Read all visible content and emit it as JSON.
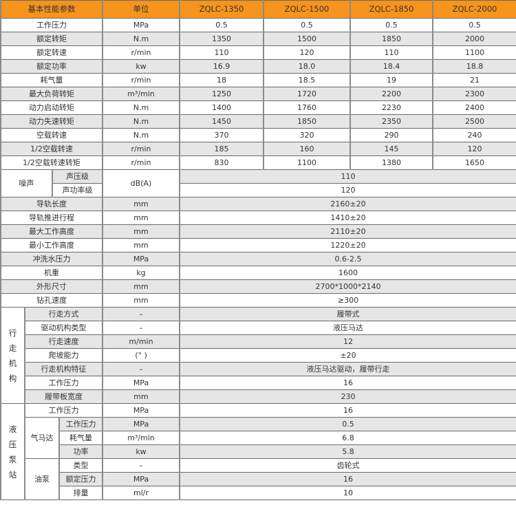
{
  "header": {
    "param": "基本性能参数",
    "unit": "单位",
    "models": [
      "ZQLC-1350",
      "ZQLC-1500",
      "ZQLC-1850",
      "ZQLC-2000"
    ]
  },
  "basic_rows": [
    {
      "label": "工作压力",
      "unit": "MPa",
      "values": [
        "0.5",
        "0.5",
        "0.5",
        "0.5"
      ]
    },
    {
      "label": "额定转矩",
      "unit": "N.m",
      "values": [
        "1350",
        "1500",
        "1850",
        "2000"
      ]
    },
    {
      "label": "额定转速",
      "unit": "r/min",
      "values": [
        "110",
        "120",
        "110",
        "1100"
      ]
    },
    {
      "label": "额定功率",
      "unit": "kw",
      "values": [
        "16.9",
        "18.0",
        "18.4",
        "18.8"
      ]
    },
    {
      "label": "耗气量",
      "unit": "r/min",
      "values": [
        "18",
        "18.5",
        "19",
        "21"
      ]
    },
    {
      "label": "最大负荷转矩",
      "unit": "m³/min",
      "values": [
        "1250",
        "1720",
        "2200",
        "2300"
      ]
    },
    {
      "label": "动力启动转矩",
      "unit": "N.m",
      "values": [
        "1400",
        "1760",
        "2230",
        "2400"
      ]
    },
    {
      "label": "动力失速转矩",
      "unit": "N.m",
      "values": [
        "1450",
        "1850",
        "2350",
        "2500"
      ]
    },
    {
      "label": "空载转速",
      "unit": "N.m",
      "values": [
        "370",
        "320",
        "290",
        "240"
      ]
    },
    {
      "label": "1/2空载转速",
      "unit": "r/min",
      "values": [
        "185",
        "160",
        "145",
        "120"
      ]
    },
    {
      "label": "1/2空载转速转矩",
      "unit": "r/min",
      "values": [
        "830",
        "1100",
        "1380",
        "1650"
      ]
    }
  ],
  "noise": {
    "label": "噪声",
    "unit": "dB(A)",
    "rows": [
      {
        "label": "声压级",
        "value": "110"
      },
      {
        "label": "声功率级",
        "value": "120"
      }
    ]
  },
  "common_rows": [
    {
      "label": "导轨长度",
      "unit": "mm",
      "value": "2160±20"
    },
    {
      "label": "导轨推进行程",
      "unit": "mm",
      "value": "1410±20"
    },
    {
      "label": "最大工作高度",
      "unit": "mm",
      "value": "2110±20"
    },
    {
      "label": "最小工作高度",
      "unit": "mm",
      "value": "1220±20"
    },
    {
      "label": "冲洗水压力",
      "unit": "MPa",
      "value": "0.6-2.5"
    },
    {
      "label": "机重",
      "unit": "kg",
      "value": "1600"
    },
    {
      "label": "外形尺寸",
      "unit": "mm",
      "value": "2700*1000*2140"
    },
    {
      "label": "钻孔速度",
      "unit": "mm",
      "value": "≥300"
    }
  ],
  "travel": {
    "label": "行走机构",
    "rows": [
      {
        "label": "行走方式",
        "unit": "–",
        "value": "履带式"
      },
      {
        "label": "驱动机构类型",
        "unit": "–",
        "value": "液压马达"
      },
      {
        "label": "行走速度",
        "unit": "m/min",
        "value": "12"
      },
      {
        "label": "爬坡能力",
        "unit": "(°  )",
        "value": "±20"
      },
      {
        "label": "行走机构特征",
        "unit": "–",
        "value": "液压马达驱动，履带行走"
      },
      {
        "label": "工作压力",
        "unit": "MPa",
        "value": "16"
      },
      {
        "label": "履带板宽度",
        "unit": "mm",
        "value": "230"
      }
    ]
  },
  "hydraulic": {
    "label": "液压泵站",
    "main": {
      "label": "工作压力",
      "unit": "MPa",
      "value": "16"
    },
    "air_motor": {
      "label": "气马达",
      "rows": [
        {
          "label": "工作压力",
          "unit": "MPa",
          "value": "0.5"
        },
        {
          "label": "耗气量",
          "unit": "m³/min",
          "value": "6.8"
        },
        {
          "label": "功率",
          "unit": "kw",
          "value": "5.8"
        }
      ]
    },
    "oil_pump": {
      "label": "油泵",
      "rows": [
        {
          "label": "类型",
          "unit": "–",
          "value": "齿轮式"
        },
        {
          "label": "额定压力",
          "unit": "MPa",
          "value": "16"
        },
        {
          "label": "排量",
          "unit": "ml/r",
          "value": "10"
        }
      ]
    }
  },
  "colors": {
    "header": "#f7941d",
    "stripe": "#e6e6e6"
  }
}
